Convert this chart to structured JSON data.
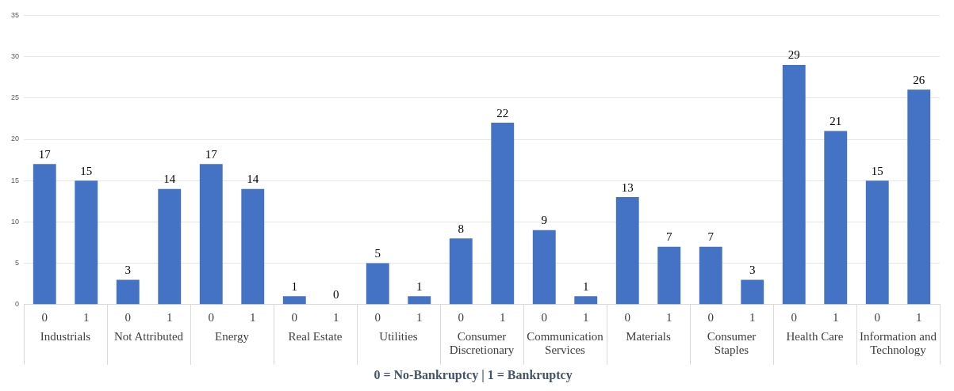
{
  "chart_data": {
    "type": "bar",
    "xlabel": "0 = No-Bankruptcy | 1 = Bankruptcy",
    "categories": [
      "0",
      "1",
      "0",
      "1",
      "0",
      "1",
      "0",
      "1",
      "0",
      "1",
      "0",
      "1",
      "0",
      "1",
      "0",
      "1",
      "0",
      "1",
      "0",
      "1",
      "0",
      "1"
    ],
    "values": [
      17,
      15,
      3,
      14,
      17,
      14,
      1,
      0,
      5,
      1,
      8,
      22,
      9,
      1,
      13,
      7,
      7,
      3,
      29,
      21,
      15,
      26
    ],
    "color": "#4472c4",
    "ylim": [
      0,
      35
    ],
    "yticks": [
      0,
      5,
      10,
      15,
      20,
      25,
      30,
      35
    ],
    "grid": "y",
    "data_labels": true,
    "legend": false,
    "annotations": [
      "Industrials",
      "Not Attributed",
      "Energy",
      "Real Estate",
      "Utilities",
      "Consumer Discretionary",
      "Communication Services",
      "Materials",
      "Consumer Staples",
      "Health Care",
      "Information and Technology"
    ]
  }
}
